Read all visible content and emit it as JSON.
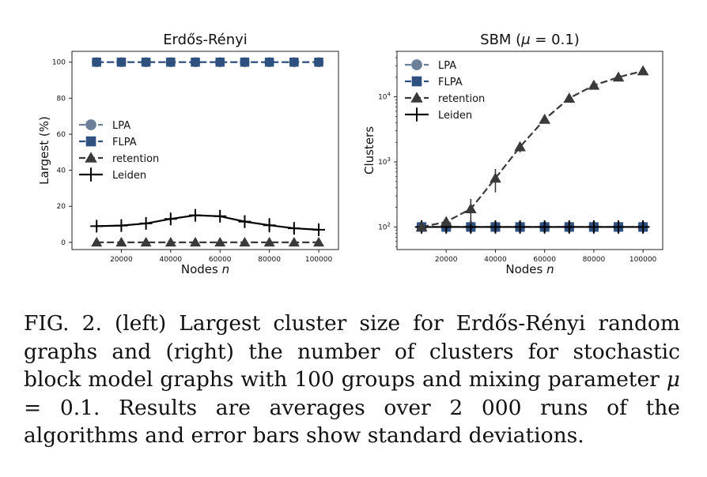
{
  "chart_data": [
    {
      "type": "line",
      "title": "Erdős-Rényi",
      "xlabel": "Nodes",
      "xlabel_var": "n",
      "ylabel": "Largest (%)",
      "xlim": [
        0,
        108000
      ],
      "ylim": [
        -4,
        106
      ],
      "yscale": "linear",
      "x": [
        10000,
        20000,
        30000,
        40000,
        50000,
        60000,
        70000,
        80000,
        90000,
        100000
      ],
      "xticks": [
        20000,
        40000,
        60000,
        80000,
        100000
      ],
      "xtick_labels": [
        "20000",
        "40000",
        "60000",
        "80000",
        "100000"
      ],
      "yticks": [
        0,
        20,
        40,
        60,
        80,
        100
      ],
      "ytick_labels": [
        "0",
        "20",
        "40",
        "60",
        "80",
        "100"
      ],
      "legend": "center-left",
      "series": [
        {
          "name": "LPA",
          "marker": "circle",
          "color": "#6b7f99",
          "dash": true,
          "values": [
            100,
            100,
            100,
            100,
            100,
            100,
            100,
            100,
            100,
            100
          ],
          "err": null
        },
        {
          "name": "FLPA",
          "marker": "square",
          "color": "#2f5180",
          "dash": true,
          "values": [
            100,
            100,
            100,
            100,
            100,
            100,
            100,
            100,
            100,
            100
          ],
          "err": null
        },
        {
          "name": "retention",
          "marker": "triangle",
          "color": "#3a3a3a",
          "dash": true,
          "values": [
            0,
            0,
            0,
            0,
            0,
            0,
            0,
            0,
            0,
            0
          ],
          "err": null
        },
        {
          "name": "Leiden",
          "marker": "plus",
          "color": "#000000",
          "dash": false,
          "values": [
            9,
            9.3,
            10.5,
            13,
            15,
            14.5,
            11.5,
            9.5,
            7.8,
            7
          ],
          "err": [
            1.5,
            1.5,
            1.2,
            1.2,
            0.5,
            2.5,
            3.5,
            4,
            2.5,
            1.8
          ]
        }
      ]
    },
    {
      "type": "line",
      "title": "SBM (",
      "title_var": "μ",
      "title_rest": " = 0.1)",
      "xlabel": "Nodes",
      "xlabel_var": "n",
      "ylabel": "Clusters",
      "xlim": [
        0,
        108000
      ],
      "ylim": [
        45,
        50000
      ],
      "yscale": "log",
      "x": [
        10000,
        20000,
        30000,
        40000,
        50000,
        60000,
        70000,
        80000,
        90000,
        100000
      ],
      "xticks": [
        20000,
        40000,
        60000,
        80000,
        100000
      ],
      "xtick_labels": [
        "20000",
        "40000",
        "60000",
        "80000",
        "100000"
      ],
      "yticks": [
        100,
        1000,
        10000
      ],
      "ytick_base": [
        "10",
        "10",
        "10"
      ],
      "ytick_exp": [
        "2",
        "3",
        "4"
      ],
      "legend": "top-left",
      "series": [
        {
          "name": "LPA",
          "marker": "circle",
          "color": "#6b7f99",
          "dash": true,
          "values": [
            100,
            100,
            100,
            100,
            100,
            100,
            100,
            100,
            100,
            100
          ],
          "err": null
        },
        {
          "name": "FLPA",
          "marker": "square",
          "color": "#2f5180",
          "dash": true,
          "values": [
            100,
            100,
            100,
            100,
            100,
            100,
            100,
            100,
            100,
            100
          ],
          "err": null
        },
        {
          "name": "retention",
          "marker": "triangle",
          "color": "#3a3a3a",
          "dash": true,
          "values": [
            100,
            120,
            190,
            560,
            1700,
            4500,
            9500,
            15000,
            20000,
            25000
          ],
          "err": [
            5,
            8,
            80,
            220,
            300,
            500,
            700,
            800,
            900,
            900
          ]
        },
        {
          "name": "Leiden",
          "marker": "plus",
          "color": "#000000",
          "dash": false,
          "values": [
            100,
            100,
            100,
            100,
            100,
            100,
            100,
            100,
            100,
            100
          ],
          "err": null
        }
      ]
    }
  ],
  "caption": {
    "part1": "FIG. 2.  (left) Largest cluster size for Erdős-Rényi random graphs and (right) the number of clusters for stochastic block model graphs with 100 groups and mixing parameter ",
    "mu": "μ",
    "part2": " = 0.1. Results are averages over 2 000 runs of the algorithms and error bars show standard deviations."
  }
}
